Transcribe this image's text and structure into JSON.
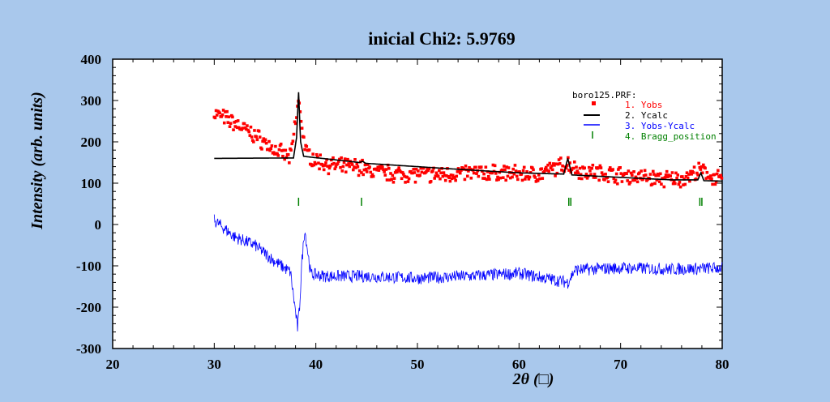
{
  "chart_data": {
    "type": "scatter",
    "title": "inicial   Chi2:  5.9769",
    "xlabel": "2θ (□)",
    "ylabel": "Intensity (arb. units)",
    "xlim": [
      20,
      80
    ],
    "ylim": [
      -300,
      400
    ],
    "xticks": [
      "20",
      "30",
      "40",
      "50",
      "60",
      "70",
      "80"
    ],
    "yticks": [
      "-300",
      "-200",
      "-100",
      "0",
      "100",
      "200",
      "300",
      "400"
    ],
    "grid": false,
    "legend": {
      "placement": "top-right",
      "header": "boro125.PRF:",
      "entries": [
        {
          "label": "1. Yobs",
          "color": "#ff0000"
        },
        {
          "label": "2. Ycalc",
          "color": "#000000"
        },
        {
          "label": "3. Yobs-Ycalc",
          "color": "#0000ff"
        },
        {
          "label": "4. Bragg_position",
          "color": "#008000"
        }
      ]
    },
    "colors": {
      "yobs": "#ff0000",
      "ycalc": "#000000",
      "diff": "#0000ff",
      "bragg": "#008000"
    },
    "series": [
      {
        "name": "1. Yobs",
        "kind": "points",
        "x": [
          30,
          32,
          34,
          36,
          37.5,
          38.3,
          39,
          40,
          42,
          44.5,
          45,
          48,
          50,
          52,
          55,
          58,
          60,
          62,
          64.8,
          66,
          68,
          70,
          72,
          74,
          76,
          77.9,
          80
        ],
        "y": [
          270,
          245,
          215,
          180,
          160,
          300,
          175,
          155,
          140,
          140,
          130,
          122,
          122,
          120,
          125,
          125,
          122,
          122,
          148,
          130,
          125,
          120,
          115,
          110,
          110,
          130,
          105
        ]
      },
      {
        "name": "2. Ycalc",
        "kind": "line",
        "x": [
          30,
          37.8,
          38.1,
          38.3,
          38.5,
          38.8,
          39.5,
          44.3,
          44.6,
          44.9,
          50,
          55,
          60,
          64.4,
          64.8,
          65.2,
          70,
          75,
          77.6,
          77.9,
          78.2,
          80
        ],
        "y": [
          160,
          161,
          210,
          320,
          200,
          165,
          163,
          150,
          153,
          148,
          140,
          132,
          125,
          122,
          160,
          120,
          114,
          108,
          108,
          125,
          106,
          105
        ]
      },
      {
        "name": "3. Yobs-Ycalc",
        "kind": "line",
        "x": [
          30,
          32,
          34,
          36,
          37.5,
          38.2,
          38.4,
          38.6,
          38.9,
          39.5,
          41,
          45,
          50,
          55,
          60,
          64.8,
          65.5,
          70,
          75,
          80
        ],
        "y": [
          10,
          -30,
          -50,
          -90,
          -115,
          -250,
          -200,
          -100,
          -10,
          -120,
          -125,
          -125,
          -130,
          -125,
          -118,
          -140,
          -110,
          -105,
          -108,
          -105
        ]
      }
    ],
    "bragg_positions": [
      38.3,
      44.5,
      64.9,
      65.1,
      77.8,
      78.0
    ],
    "bragg_y": 55
  }
}
